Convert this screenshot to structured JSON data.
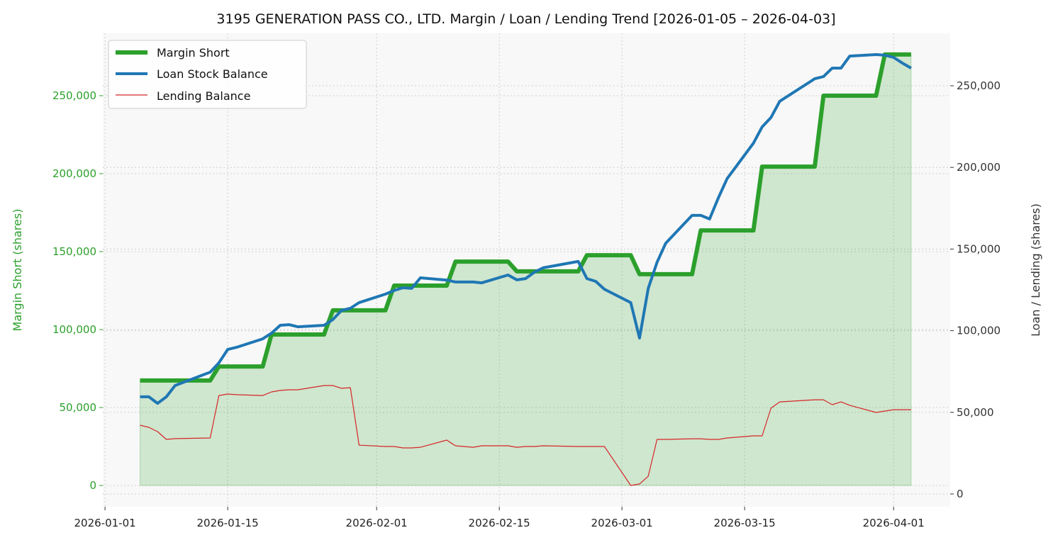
{
  "chart_data": {
    "type": "line",
    "title": "3195 GENERATION PASS CO., LTD. Margin / Loan / Lending Trend [2026-01-05 – 2026-04-03]",
    "xlabel": "",
    "ylabel_left": "Margin Short (shares)",
    "ylabel_right": "Loan / Lending (shares)",
    "ylim_left": [
      -13636,
      290000
    ],
    "ylim_right": [
      -7812,
      282118
    ],
    "xlim": [
      "2025-12-31T18:00",
      "2026-04-07T11:00"
    ],
    "grid": true,
    "legend_position": "top-left",
    "x_ticks": [
      "2026-01-01",
      "2026-01-15",
      "2026-02-01",
      "2026-02-15",
      "2026-03-01",
      "2026-03-15",
      "2026-04-01"
    ],
    "y_ticks_left": [
      0,
      50000,
      100000,
      150000,
      200000,
      250000
    ],
    "y_ticks_left_labels": [
      "0",
      "50,000",
      "100,000",
      "150,000",
      "200,000",
      "250,000"
    ],
    "y_ticks_right": [
      0,
      50000,
      100000,
      150000,
      200000,
      250000
    ],
    "y_ticks_right_labels": [
      "0",
      "50,000",
      "100,000",
      "150,000",
      "200,000",
      "250,000"
    ],
    "dates": [
      "2026-01-05",
      "2026-01-06",
      "2026-01-07",
      "2026-01-08",
      "2026-01-09",
      "2026-01-13",
      "2026-01-14",
      "2026-01-15",
      "2026-01-16",
      "2026-01-19",
      "2026-01-20",
      "2026-01-21",
      "2026-01-22",
      "2026-01-23",
      "2026-01-26",
      "2026-01-27",
      "2026-01-28",
      "2026-01-29",
      "2026-01-30",
      "2026-02-02",
      "2026-02-03",
      "2026-02-04",
      "2026-02-05",
      "2026-02-06",
      "2026-02-09",
      "2026-02-10",
      "2026-02-12",
      "2026-02-13",
      "2026-02-16",
      "2026-02-17",
      "2026-02-18",
      "2026-02-19",
      "2026-02-20",
      "2026-02-24",
      "2026-02-25",
      "2026-02-26",
      "2026-02-27",
      "2026-03-02",
      "2026-03-03",
      "2026-03-04",
      "2026-03-05",
      "2026-03-06",
      "2026-03-09",
      "2026-03-10",
      "2026-03-11",
      "2026-03-12",
      "2026-03-13",
      "2026-03-16",
      "2026-03-17",
      "2026-03-18",
      "2026-03-19",
      "2026-03-23",
      "2026-03-24",
      "2026-03-25",
      "2026-03-26",
      "2026-03-27",
      "2026-03-30",
      "2026-03-31",
      "2026-04-01",
      "2026-04-02",
      "2026-04-03"
    ],
    "series": [
      {
        "name": "Margin Short",
        "axis": "left",
        "color": "#2ca02c",
        "fill": true,
        "values": [
          67300,
          67300,
          67300,
          67300,
          67300,
          67300,
          76300,
          76300,
          76300,
          76300,
          96800,
          96800,
          96800,
          96800,
          96800,
          112300,
          112300,
          112300,
          112300,
          112300,
          128200,
          128200,
          128200,
          128200,
          128200,
          143600,
          143600,
          143600,
          143600,
          137300,
          137300,
          137300,
          137300,
          137300,
          147700,
          147700,
          147700,
          147700,
          135500,
          135500,
          135500,
          135500,
          135500,
          163600,
          163600,
          163600,
          163600,
          163600,
          204500,
          204500,
          204500,
          204500,
          250000,
          250000,
          250000,
          250000,
          250000,
          276400,
          276400,
          276400,
          276400
        ]
      },
      {
        "name": "Loan Stock Balance",
        "axis": "right",
        "color": "#1f77b4",
        "values": [
          59500,
          59500,
          55500,
          59500,
          66400,
          74600,
          80300,
          88500,
          89800,
          95000,
          98500,
          103300,
          103700,
          102400,
          103300,
          106800,
          112400,
          113700,
          117200,
          122400,
          124600,
          126300,
          125900,
          132400,
          131000,
          129800,
          129800,
          129300,
          134100,
          131100,
          131900,
          135800,
          138500,
          142400,
          131900,
          130200,
          125400,
          117200,
          95500,
          125900,
          141900,
          153600,
          170600,
          170600,
          168400,
          181400,
          193100,
          214800,
          224800,
          230500,
          240500,
          254300,
          255600,
          260800,
          260800,
          268200,
          269100,
          268700,
          267400,
          263900,
          260800
        ]
      },
      {
        "name": "Lending Balance",
        "axis": "right",
        "color": "#d62728",
        "values": [
          42100,
          40800,
          38200,
          33400,
          33900,
          34300,
          60300,
          61200,
          60800,
          60300,
          62500,
          63400,
          63800,
          63800,
          66400,
          66400,
          64700,
          65100,
          29900,
          29100,
          29100,
          28200,
          28200,
          28600,
          33000,
          29500,
          28600,
          29500,
          29500,
          28600,
          29100,
          29100,
          29500,
          29100,
          29100,
          29100,
          29100,
          5200,
          6100,
          10900,
          33400,
          33400,
          33800,
          33800,
          33400,
          33400,
          34300,
          35600,
          35600,
          52500,
          56400,
          57700,
          57700,
          54700,
          56400,
          54300,
          49900,
          50800,
          51600,
          51600,
          51600
        ]
      }
    ]
  }
}
